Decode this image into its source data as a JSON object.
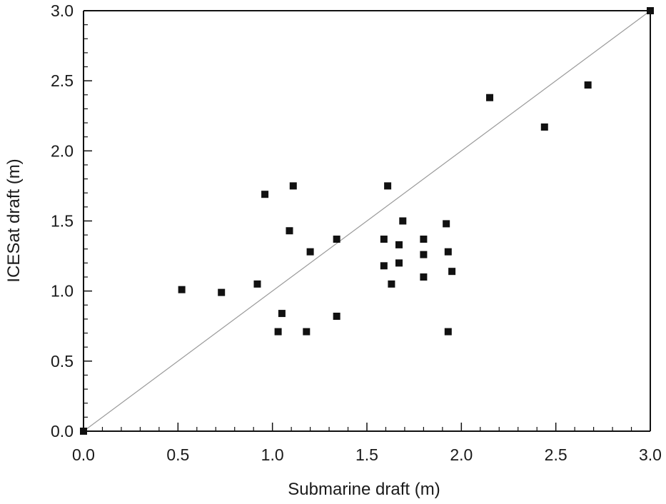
{
  "chart_data": {
    "type": "scatter",
    "title": "",
    "xlabel": "Submarine draft (m)",
    "ylabel": "ICESat draft (m)",
    "xlim": [
      0.0,
      3.0
    ],
    "ylim": [
      0.0,
      3.0
    ],
    "x_ticks": [
      "0.0",
      "0.5",
      "1.0",
      "1.5",
      "2.0",
      "2.5",
      "3.0"
    ],
    "y_ticks": [
      "0.0",
      "0.5",
      "1.0",
      "1.5",
      "2.0",
      "2.5",
      "3.0"
    ],
    "grid": false,
    "legend": "none",
    "marker": "square",
    "marker_color": "#111111",
    "reference_line": {
      "type": "1:1",
      "from": [
        0.0,
        0.0
      ],
      "to": [
        3.0,
        3.0
      ],
      "color": "#9a9a9a"
    },
    "series": [
      {
        "points": [
          {
            "x": 0.0,
            "y": 0.0
          },
          {
            "x": 0.52,
            "y": 1.01
          },
          {
            "x": 0.73,
            "y": 0.99
          },
          {
            "x": 0.92,
            "y": 1.05
          },
          {
            "x": 0.96,
            "y": 1.69
          },
          {
            "x": 1.03,
            "y": 0.71
          },
          {
            "x": 1.05,
            "y": 0.84
          },
          {
            "x": 1.09,
            "y": 1.43
          },
          {
            "x": 1.11,
            "y": 1.75
          },
          {
            "x": 1.18,
            "y": 0.71
          },
          {
            "x": 1.2,
            "y": 1.28
          },
          {
            "x": 1.34,
            "y": 0.82
          },
          {
            "x": 1.34,
            "y": 1.37
          },
          {
            "x": 1.59,
            "y": 1.37
          },
          {
            "x": 1.59,
            "y": 1.18
          },
          {
            "x": 1.61,
            "y": 1.75
          },
          {
            "x": 1.63,
            "y": 1.05
          },
          {
            "x": 1.67,
            "y": 1.2
          },
          {
            "x": 1.67,
            "y": 1.33
          },
          {
            "x": 1.69,
            "y": 1.5
          },
          {
            "x": 1.8,
            "y": 1.37
          },
          {
            "x": 1.8,
            "y": 1.26
          },
          {
            "x": 1.8,
            "y": 1.1
          },
          {
            "x": 1.92,
            "y": 1.48
          },
          {
            "x": 1.93,
            "y": 1.28
          },
          {
            "x": 1.93,
            "y": 0.71
          },
          {
            "x": 1.95,
            "y": 1.14
          },
          {
            "x": 2.15,
            "y": 2.38
          },
          {
            "x": 2.44,
            "y": 2.17
          },
          {
            "x": 2.67,
            "y": 2.47
          },
          {
            "x": 3.0,
            "y": 3.0
          }
        ]
      }
    ]
  }
}
